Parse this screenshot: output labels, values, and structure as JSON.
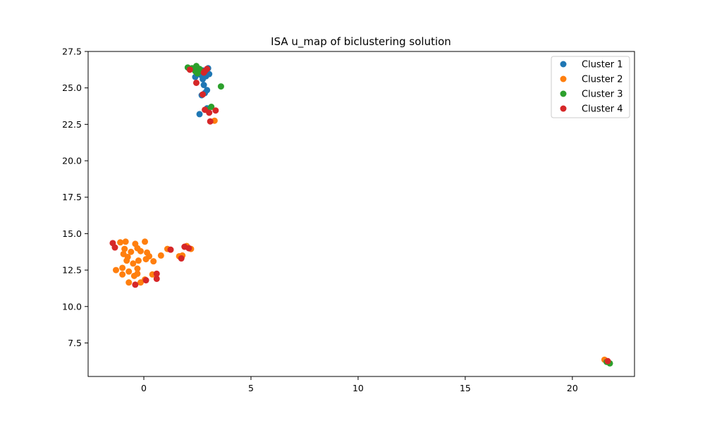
{
  "chart_data": {
    "type": "scatter",
    "title": "ISA u_map of biclustering solution",
    "xlabel": "",
    "ylabel": "",
    "xlim": [
      -2.6,
      22.9
    ],
    "ylim": [
      5.2,
      27.5
    ],
    "x_ticks": [
      0,
      5,
      10,
      15,
      20
    ],
    "y_ticks": [
      7.5,
      10.0,
      12.5,
      15.0,
      17.5,
      20.0,
      22.5,
      25.0,
      27.5
    ],
    "x_tick_labels": [
      "0",
      "5",
      "10",
      "15",
      "20"
    ],
    "y_tick_labels": [
      "7.5",
      "10.0",
      "12.5",
      "15.0",
      "17.5",
      "20.0",
      "22.5",
      "25.0",
      "27.5"
    ],
    "grid": false,
    "legend_position": "top-right",
    "series": [
      {
        "name": "Cluster 1",
        "color": "#1f77b4",
        "points": [
          [
            2.4,
            25.75
          ],
          [
            2.65,
            25.9
          ],
          [
            2.8,
            26.0
          ],
          [
            2.9,
            25.8
          ],
          [
            3.05,
            25.95
          ],
          [
            2.75,
            25.6
          ],
          [
            3.0,
            26.35
          ],
          [
            2.8,
            25.2
          ],
          [
            2.95,
            24.85
          ],
          [
            2.7,
            24.5
          ],
          [
            2.85,
            24.65
          ],
          [
            2.95,
            23.6
          ],
          [
            2.6,
            23.2
          ],
          [
            2.75,
            26.2
          ]
        ]
      },
      {
        "name": "Cluster 2",
        "color": "#ff7f0e",
        "points": [
          [
            -1.1,
            14.4
          ],
          [
            -0.85,
            14.45
          ],
          [
            -0.4,
            14.3
          ],
          [
            0.05,
            14.45
          ],
          [
            -0.9,
            13.95
          ],
          [
            -0.6,
            13.75
          ],
          [
            -0.3,
            14.0
          ],
          [
            -0.15,
            13.8
          ],
          [
            0.15,
            13.7
          ],
          [
            -0.95,
            13.6
          ],
          [
            -0.75,
            13.4
          ],
          [
            -0.8,
            13.15
          ],
          [
            -0.5,
            12.95
          ],
          [
            -0.25,
            13.15
          ],
          [
            0.1,
            13.25
          ],
          [
            0.25,
            13.45
          ],
          [
            0.45,
            13.1
          ],
          [
            0.8,
            13.5
          ],
          [
            1.1,
            13.95
          ],
          [
            1.65,
            13.45
          ],
          [
            1.8,
            13.5
          ],
          [
            2.0,
            14.15
          ],
          [
            2.2,
            13.95
          ],
          [
            -1.3,
            12.5
          ],
          [
            -1.0,
            12.65
          ],
          [
            -1.0,
            12.2
          ],
          [
            -0.7,
            12.4
          ],
          [
            -0.45,
            12.1
          ],
          [
            -0.3,
            12.25
          ],
          [
            -0.3,
            12.6
          ],
          [
            0.4,
            12.2
          ],
          [
            -0.7,
            11.65
          ],
          [
            -0.15,
            11.65
          ],
          [
            0.05,
            11.85
          ],
          [
            3.3,
            22.75
          ],
          [
            21.5,
            6.35
          ]
        ]
      },
      {
        "name": "Cluster 3",
        "color": "#2ca02c",
        "points": [
          [
            2.05,
            26.4
          ],
          [
            2.25,
            26.35
          ],
          [
            2.45,
            26.5
          ],
          [
            2.6,
            26.3
          ],
          [
            2.4,
            26.15
          ],
          [
            2.7,
            26.15
          ],
          [
            2.5,
            26.0
          ],
          [
            3.6,
            25.1
          ],
          [
            3.15,
            23.7
          ],
          [
            2.9,
            23.5
          ],
          [
            21.75,
            6.1
          ],
          [
            21.6,
            6.2
          ]
        ]
      },
      {
        "name": "Cluster 4",
        "color": "#d62728",
        "points": [
          [
            2.15,
            26.25
          ],
          [
            2.85,
            26.15
          ],
          [
            2.95,
            26.3
          ],
          [
            2.8,
            26.05
          ],
          [
            2.45,
            25.35
          ],
          [
            2.75,
            24.55
          ],
          [
            2.85,
            23.5
          ],
          [
            3.05,
            23.3
          ],
          [
            3.35,
            23.45
          ],
          [
            3.1,
            22.7
          ],
          [
            -1.45,
            14.35
          ],
          [
            -1.35,
            14.05
          ],
          [
            1.25,
            13.9
          ],
          [
            1.9,
            14.1
          ],
          [
            2.1,
            14.0
          ],
          [
            1.75,
            13.3
          ],
          [
            0.6,
            12.25
          ],
          [
            0.1,
            11.8
          ],
          [
            0.6,
            11.9
          ],
          [
            -0.4,
            11.5
          ],
          [
            21.65,
            6.25
          ]
        ]
      }
    ]
  }
}
